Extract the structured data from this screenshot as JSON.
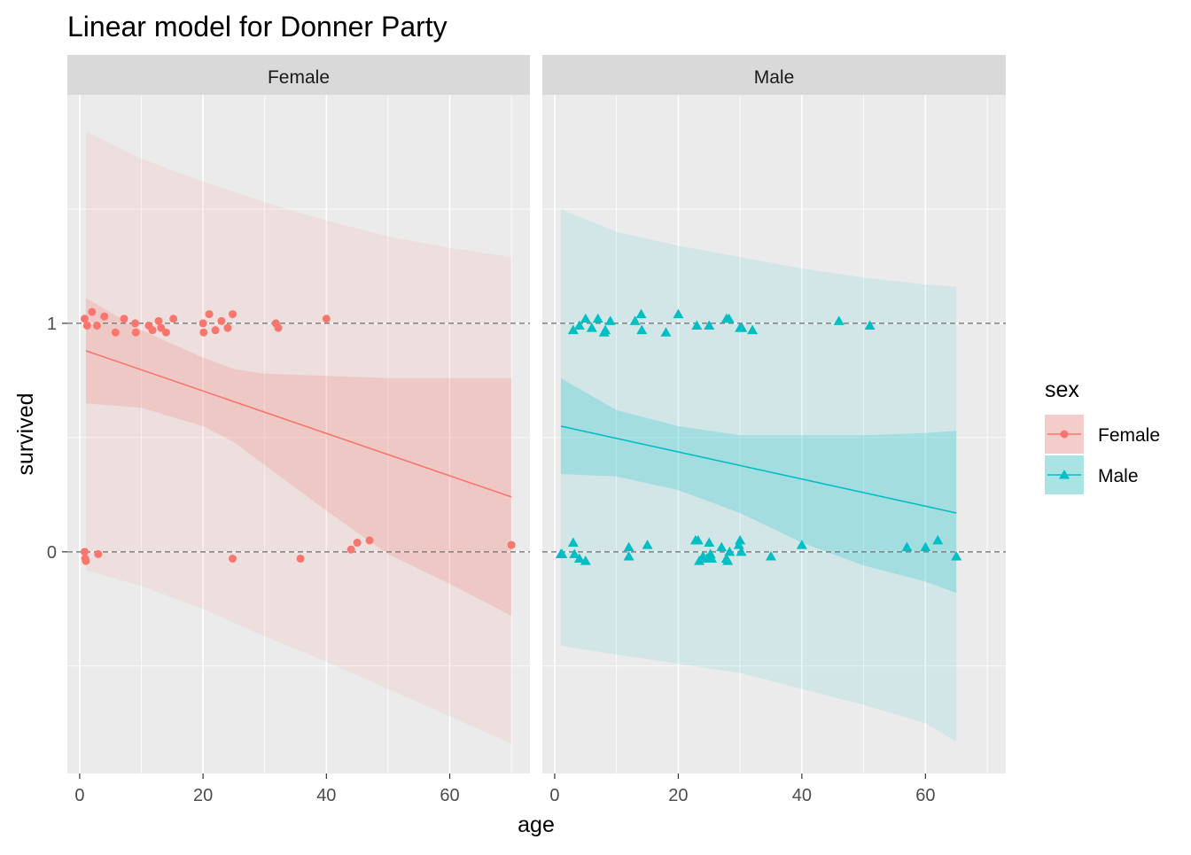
{
  "chart_data": {
    "type": "scatter",
    "title": "Linear model for Donner Party",
    "xlabel": "age",
    "ylabel": "survived",
    "xlim": [
      -2,
      73
    ],
    "ylim": [
      -0.97,
      2.0
    ],
    "x_ticks": [
      0,
      20,
      40,
      60
    ],
    "x_tick_labels": [
      "0",
      "20",
      "40",
      "60"
    ],
    "y_ticks": [
      0,
      1
    ],
    "y_tick_labels": [
      "0",
      "1"
    ],
    "reference_lines": [
      0,
      1
    ],
    "grid": true,
    "legend": {
      "title": "sex",
      "placement": "right",
      "entries": [
        {
          "label": "Female",
          "color": "#F8766D",
          "shape": "circle"
        },
        {
          "label": "Male",
          "color": "#00BFC4",
          "shape": "triangle"
        }
      ]
    },
    "panels": [
      {
        "name": "Female",
        "color": "#F8766D",
        "shape": "circle",
        "fit": {
          "x": [
            1,
            70
          ],
          "y": [
            0.88,
            0.24
          ]
        },
        "ci_band": {
          "x": [
            1,
            10,
            20,
            25,
            30,
            40,
            50,
            60,
            70
          ],
          "lower": [
            0.65,
            0.63,
            0.55,
            0.48,
            0.38,
            0.18,
            -0.01,
            -0.14,
            -0.28
          ],
          "upper": [
            1.11,
            0.97,
            0.85,
            0.8,
            0.78,
            0.77,
            0.76,
            0.76,
            0.76
          ]
        },
        "pi_band": {
          "x": [
            1,
            10,
            20,
            30,
            40,
            50,
            60,
            70
          ],
          "lower": [
            -0.08,
            -0.15,
            -0.25,
            -0.37,
            -0.48,
            -0.6,
            -0.72,
            -0.84
          ],
          "upper": [
            1.84,
            1.72,
            1.62,
            1.53,
            1.45,
            1.38,
            1.33,
            1.29
          ]
        },
        "points": [
          {
            "x": 0.8,
            "y": 1.02
          },
          {
            "x": 1.2,
            "y": 0.99
          },
          {
            "x": 2.0,
            "y": 1.05
          },
          {
            "x": 2.8,
            "y": 0.99
          },
          {
            "x": 4.0,
            "y": 1.03
          },
          {
            "x": 5.8,
            "y": 0.96
          },
          {
            "x": 7.2,
            "y": 1.02
          },
          {
            "x": 9.0,
            "y": 1.0
          },
          {
            "x": 9.1,
            "y": 0.96
          },
          {
            "x": 11.2,
            "y": 0.99
          },
          {
            "x": 11.8,
            "y": 0.97
          },
          {
            "x": 12.8,
            "y": 1.01
          },
          {
            "x": 13.2,
            "y": 0.98
          },
          {
            "x": 14.0,
            "y": 0.96
          },
          {
            "x": 15.2,
            "y": 1.02
          },
          {
            "x": 20.0,
            "y": 1.0
          },
          {
            "x": 20.1,
            "y": 0.96
          },
          {
            "x": 21.0,
            "y": 1.04
          },
          {
            "x": 22.0,
            "y": 0.97
          },
          {
            "x": 23.0,
            "y": 1.01
          },
          {
            "x": 24.0,
            "y": 0.98
          },
          {
            "x": 24.8,
            "y": 1.04
          },
          {
            "x": 31.8,
            "y": 1.0
          },
          {
            "x": 32.2,
            "y": 0.98
          },
          {
            "x": 40.0,
            "y": 1.02
          },
          {
            "x": 0.8,
            "y": 0.0
          },
          {
            "x": 0.9,
            "y": -0.03
          },
          {
            "x": 1.0,
            "y": -0.04
          },
          {
            "x": 3.0,
            "y": -0.01
          },
          {
            "x": 24.8,
            "y": -0.03
          },
          {
            "x": 35.8,
            "y": -0.03
          },
          {
            "x": 44.0,
            "y": 0.01
          },
          {
            "x": 45.0,
            "y": 0.04
          },
          {
            "x": 47.0,
            "y": 0.05
          },
          {
            "x": 70.0,
            "y": 0.03
          }
        ]
      },
      {
        "name": "Male",
        "color": "#00BFC4",
        "shape": "triangle",
        "fit": {
          "x": [
            1,
            65
          ],
          "y": [
            0.55,
            0.17
          ]
        },
        "ci_band": {
          "x": [
            1,
            10,
            20,
            30,
            40,
            50,
            60,
            65
          ],
          "lower": [
            0.34,
            0.33,
            0.27,
            0.17,
            0.04,
            -0.06,
            -0.13,
            -0.18
          ],
          "upper": [
            0.76,
            0.62,
            0.55,
            0.51,
            0.51,
            0.51,
            0.52,
            0.53
          ]
        },
        "pi_band": {
          "x": [
            1,
            10,
            20,
            30,
            40,
            50,
            60,
            65
          ],
          "lower": [
            -0.41,
            -0.45,
            -0.49,
            -0.53,
            -0.6,
            -0.67,
            -0.75,
            -0.83
          ],
          "upper": [
            1.5,
            1.4,
            1.34,
            1.29,
            1.24,
            1.2,
            1.17,
            1.16
          ]
        },
        "points": [
          {
            "x": 3.0,
            "y": 0.97
          },
          {
            "x": 4.0,
            "y": 0.99
          },
          {
            "x": 5.0,
            "y": 1.02
          },
          {
            "x": 6.0,
            "y": 0.98
          },
          {
            "x": 7.0,
            "y": 1.02
          },
          {
            "x": 8.0,
            "y": 0.96
          },
          {
            "x": 8.2,
            "y": 0.97
          },
          {
            "x": 9.0,
            "y": 1.01
          },
          {
            "x": 13.0,
            "y": 1.01
          },
          {
            "x": 14.0,
            "y": 1.04
          },
          {
            "x": 14.1,
            "y": 0.97
          },
          {
            "x": 18.0,
            "y": 0.96
          },
          {
            "x": 20.0,
            "y": 1.04
          },
          {
            "x": 23.0,
            "y": 0.99
          },
          {
            "x": 25.0,
            "y": 0.99
          },
          {
            "x": 27.8,
            "y": 1.02
          },
          {
            "x": 28.2,
            "y": 1.02
          },
          {
            "x": 30.0,
            "y": 0.98
          },
          {
            "x": 30.3,
            "y": 0.98
          },
          {
            "x": 32.0,
            "y": 0.97
          },
          {
            "x": 46.0,
            "y": 1.01
          },
          {
            "x": 51.0,
            "y": 0.99
          },
          {
            "x": 1.0,
            "y": -0.01
          },
          {
            "x": 1.2,
            "y": -0.01
          },
          {
            "x": 3.0,
            "y": 0.04
          },
          {
            "x": 3.2,
            "y": -0.01
          },
          {
            "x": 4.0,
            "y": -0.03
          },
          {
            "x": 5.0,
            "y": -0.04
          },
          {
            "x": 12.0,
            "y": 0.02
          },
          {
            "x": 12.0,
            "y": -0.02
          },
          {
            "x": 15.0,
            "y": 0.03
          },
          {
            "x": 22.8,
            "y": 0.05
          },
          {
            "x": 23.2,
            "y": 0.05
          },
          {
            "x": 23.4,
            "y": -0.04
          },
          {
            "x": 24.0,
            "y": -0.02
          },
          {
            "x": 24.6,
            "y": -0.03
          },
          {
            "x": 25.0,
            "y": 0.04
          },
          {
            "x": 25.2,
            "y": -0.01
          },
          {
            "x": 25.4,
            "y": -0.03
          },
          {
            "x": 27.0,
            "y": 0.02
          },
          {
            "x": 27.8,
            "y": -0.03
          },
          {
            "x": 28.0,
            "y": -0.04
          },
          {
            "x": 28.3,
            "y": 0.0
          },
          {
            "x": 29.8,
            "y": 0.03
          },
          {
            "x": 30.0,
            "y": 0.05
          },
          {
            "x": 30.2,
            "y": 0.0
          },
          {
            "x": 35.0,
            "y": -0.02
          },
          {
            "x": 40.0,
            "y": 0.03
          },
          {
            "x": 57.0,
            "y": 0.02
          },
          {
            "x": 60.0,
            "y": 0.02
          },
          {
            "x": 62.0,
            "y": 0.05
          },
          {
            "x": 65.0,
            "y": -0.02
          }
        ]
      }
    ]
  }
}
